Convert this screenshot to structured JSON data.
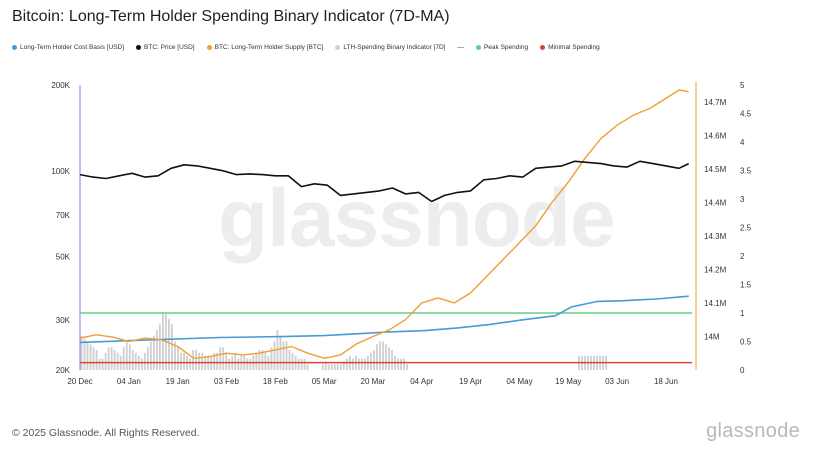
{
  "title": "Bitcoin: Long-Term Holder Spending Binary Indicator (7D-MA)",
  "legend": [
    {
      "label": "Long-Term Holder Cost Basis [USD]",
      "color": "#4a9ad4",
      "shape": "dot"
    },
    {
      "label": "BTC: Price [USD]",
      "color": "#111111",
      "shape": "dot"
    },
    {
      "label": "BTC: Long-Term Holder Supply [BTC]",
      "color": "#f0a030",
      "shape": "dot"
    },
    {
      "label": "LTH-Spending Binary Indicator [7D]",
      "color": "#cfcfcf",
      "shape": "dot"
    },
    {
      "label": "Peak Spending",
      "color": "#63d08a",
      "shape": "dot"
    },
    {
      "label": "Minimal Spending",
      "color": "#e0403a",
      "shape": "dot"
    }
  ],
  "footer": {
    "copyright": "© 2025 Glassnode. All Rights Reserved.",
    "logo": "glassnode",
    "watermark": "glassnode"
  },
  "colors": {
    "price": "#111111",
    "cost_basis": "#4a9ad4",
    "lth_supply": "#f0a030",
    "indicator": "#cfcfcf",
    "peak": "#63d08a",
    "minimal": "#e0403a",
    "cursor": "#8a7cf0"
  },
  "chart_data": {
    "type": "line",
    "title": "Bitcoin: Long-Term Holder Spending Binary Indicator (7D-MA)",
    "x_range": [
      "2024-12-20",
      "2025-06-26"
    ],
    "x_ticks": [
      "20 Dec",
      "04 Jan",
      "19 Jan",
      "03 Feb",
      "18 Feb",
      "05 Mar",
      "20 Mar",
      "04 Apr",
      "19 Apr",
      "04 May",
      "19 May",
      "03 Jun",
      "18 Jun"
    ],
    "y_left": {
      "scale": "log",
      "range": [
        20000,
        200000
      ],
      "ticks": [
        20000,
        30000,
        50000,
        70000,
        100000,
        200000
      ],
      "tick_labels": [
        "20K",
        "30K",
        "50K",
        "70K",
        "100K",
        "200K"
      ]
    },
    "y_middle": {
      "range": [
        13900000,
        14750000
      ],
      "ticks": [
        14000000,
        14100000,
        14200000,
        14300000,
        14400000,
        14500000,
        14600000,
        14700000
      ],
      "tick_labels": [
        "14M",
        "14.1M",
        "14.2M",
        "14.3M",
        "14.4M",
        "14.5M",
        "14.6M",
        "14.7M"
      ]
    },
    "y_right": {
      "range": [
        0,
        5
      ],
      "ticks": [
        0,
        0.5,
        1,
        1.5,
        2,
        2.5,
        3,
        3.5,
        4,
        4.5,
        5
      ],
      "tick_labels": [
        "0",
        "0.5",
        "1",
        "1.5",
        "2",
        "2.5",
        "3",
        "3.5",
        "4",
        "4.5",
        "5"
      ]
    },
    "series": [
      {
        "name": "BTC: Price [USD]",
        "axis": "left",
        "x": [
          "2024-12-20",
          "2024-12-24",
          "2024-12-28",
          "2025-01-01",
          "2025-01-05",
          "2025-01-09",
          "2025-01-13",
          "2025-01-17",
          "2025-01-21",
          "2025-01-25",
          "2025-01-29",
          "2025-02-02",
          "2025-02-06",
          "2025-02-10",
          "2025-02-14",
          "2025-02-18",
          "2025-02-22",
          "2025-02-26",
          "2025-03-02",
          "2025-03-06",
          "2025-03-10",
          "2025-03-14",
          "2025-03-18",
          "2025-03-22",
          "2025-03-26",
          "2025-03-30",
          "2025-04-03",
          "2025-04-07",
          "2025-04-11",
          "2025-04-15",
          "2025-04-19",
          "2025-04-23",
          "2025-04-27",
          "2025-05-01",
          "2025-05-05",
          "2025-05-09",
          "2025-05-13",
          "2025-05-17",
          "2025-05-21",
          "2025-05-25",
          "2025-05-29",
          "2025-06-02",
          "2025-06-06",
          "2025-06-10",
          "2025-06-14",
          "2025-06-18",
          "2025-06-22",
          "2025-06-25"
        ],
        "y": [
          97000,
          95000,
          94000,
          96000,
          98000,
          95000,
          96000,
          102000,
          105000,
          104000,
          102000,
          100000,
          97000,
          97500,
          97000,
          96000,
          96000,
          88000,
          90000,
          89000,
          82000,
          83000,
          84000,
          85000,
          87000,
          83000,
          84000,
          78000,
          82000,
          84000,
          85000,
          93000,
          94000,
          96000,
          95000,
          102000,
          103000,
          104000,
          108000,
          107000,
          106000,
          104000,
          103000,
          108000,
          106000,
          104000,
          102000,
          106000
        ]
      },
      {
        "name": "Long-Term Holder Cost Basis [USD]",
        "axis": "left",
        "x": [
          "2024-12-20",
          "2025-01-10",
          "2025-02-01",
          "2025-02-20",
          "2025-03-05",
          "2025-03-15",
          "2025-03-25",
          "2025-04-05",
          "2025-04-15",
          "2025-04-25",
          "2025-05-05",
          "2025-05-15",
          "2025-05-20",
          "2025-05-28",
          "2025-06-05",
          "2025-06-15",
          "2025-06-25"
        ],
        "y": [
          25000,
          25500,
          26000,
          26200,
          26400,
          26800,
          27200,
          27500,
          28100,
          28900,
          30000,
          31000,
          33300,
          34800,
          35000,
          35500,
          36300
        ]
      },
      {
        "name": "BTC: Long-Term Holder Supply [BTC]",
        "axis": "middle",
        "x": [
          "2024-12-20",
          "2024-12-25",
          "2024-12-30",
          "2025-01-04",
          "2025-01-09",
          "2025-01-14",
          "2025-01-19",
          "2025-01-24",
          "2025-01-29",
          "2025-02-03",
          "2025-02-08",
          "2025-02-13",
          "2025-02-18",
          "2025-02-23",
          "2025-02-28",
          "2025-03-05",
          "2025-03-10",
          "2025-03-15",
          "2025-03-20",
          "2025-03-25",
          "2025-03-30",
          "2025-04-04",
          "2025-04-09",
          "2025-04-14",
          "2025-04-19",
          "2025-04-24",
          "2025-04-29",
          "2025-05-04",
          "2025-05-09",
          "2025-05-14",
          "2025-05-19",
          "2025-05-24",
          "2025-05-29",
          "2025-06-03",
          "2025-06-08",
          "2025-06-13",
          "2025-06-18",
          "2025-06-22",
          "2025-06-25"
        ],
        "y": [
          13995000,
          14005000,
          13998000,
          13985000,
          13995000,
          13990000,
          13970000,
          13935000,
          13940000,
          13950000,
          13945000,
          13950000,
          13960000,
          13970000,
          13950000,
          13935000,
          13945000,
          13978000,
          14000000,
          14020000,
          14050000,
          14100000,
          14115000,
          14100000,
          14130000,
          14180000,
          14230000,
          14280000,
          14330000,
          14400000,
          14460000,
          14530000,
          14590000,
          14630000,
          14660000,
          14680000,
          14710000,
          14735000,
          14730000
        ]
      },
      {
        "name": "Peak Spending",
        "axis": "right",
        "y": 1.0
      },
      {
        "name": "Minimal Spending",
        "axis": "right",
        "y": 0.13
      },
      {
        "name": "LTH-Spending Binary Indicator [7D]",
        "axis": "right",
        "type": "bar",
        "values": [
          0.6,
          0.55,
          0.5,
          0.45,
          0.4,
          0.35,
          0.2,
          0.2,
          0.3,
          0.4,
          0.4,
          0.35,
          0.3,
          0.25,
          0.4,
          0.5,
          0.45,
          0.35,
          0.3,
          0.25,
          0.2,
          0.3,
          0.4,
          0.5,
          0.6,
          0.7,
          0.8,
          1.0,
          1.0,
          0.9,
          0.8,
          0.5,
          0.4,
          0.3,
          0.3,
          0.25,
          0.2,
          0.35,
          0.35,
          0.3,
          0.3,
          0.25,
          0.25,
          0.25,
          0.3,
          0.3,
          0.4,
          0.4,
          0.3,
          0.2,
          0.25,
          0.3,
          0.2,
          0.25,
          0.25,
          0.2,
          0.2,
          0.25,
          0.3,
          0.35,
          0.35,
          0.3,
          0.25,
          0.4,
          0.5,
          0.7,
          0.6,
          0.5,
          0.5,
          0.35,
          0.3,
          0.25,
          0.2,
          0.2,
          0.2,
          0.1,
          0.0,
          0.0,
          0.0,
          0.0,
          0.1,
          0.15,
          0.1,
          0.1,
          0.1,
          0.1,
          0.1,
          0.15,
          0.2,
          0.25,
          0.2,
          0.25,
          0.2,
          0.2,
          0.2,
          0.25,
          0.3,
          0.35,
          0.45,
          0.5,
          0.5,
          0.45,
          0.4,
          0.35,
          0.25,
          0.2,
          0.2,
          0.2,
          0.1,
          0.0,
          0.0,
          0.0,
          0.0,
          0.0,
          0.0,
          0.0,
          0.0,
          0.0,
          0.0,
          0.0,
          0.0,
          0.0,
          0.0,
          0.0,
          0.0,
          0.0,
          0.0,
          0.0,
          0.0,
          0.0,
          0.0,
          0.0,
          0.0,
          0.0,
          0.0,
          0.0,
          0.0,
          0.0,
          0.0,
          0.0,
          0.0,
          0.0,
          0.0,
          0.0,
          0.0,
          0.0,
          0.0,
          0.0,
          0.0,
          0.0,
          0.0,
          0.0,
          0.0,
          0.0,
          0.0,
          0.0,
          0.0,
          0.0,
          0.0,
          0.0,
          0.0,
          0.0,
          0.0,
          0.0,
          0.0,
          0.25,
          0.25,
          0.25,
          0.25,
          0.25,
          0.25,
          0.25,
          0.25,
          0.25,
          0.25,
          0.0,
          0.0,
          0.0,
          0.0,
          0.0,
          0.0,
          0.0,
          0.0,
          0.0,
          0.0,
          0.0,
          0.0,
          0.0,
          0.0,
          0.0,
          0.0,
          0.0,
          0.0,
          0.0,
          0.0,
          0.0,
          0.0,
          0.0,
          0.0,
          0.0,
          0.0,
          0.0,
          0.0
        ]
      }
    ],
    "grid": false,
    "legend_position": "top"
  }
}
